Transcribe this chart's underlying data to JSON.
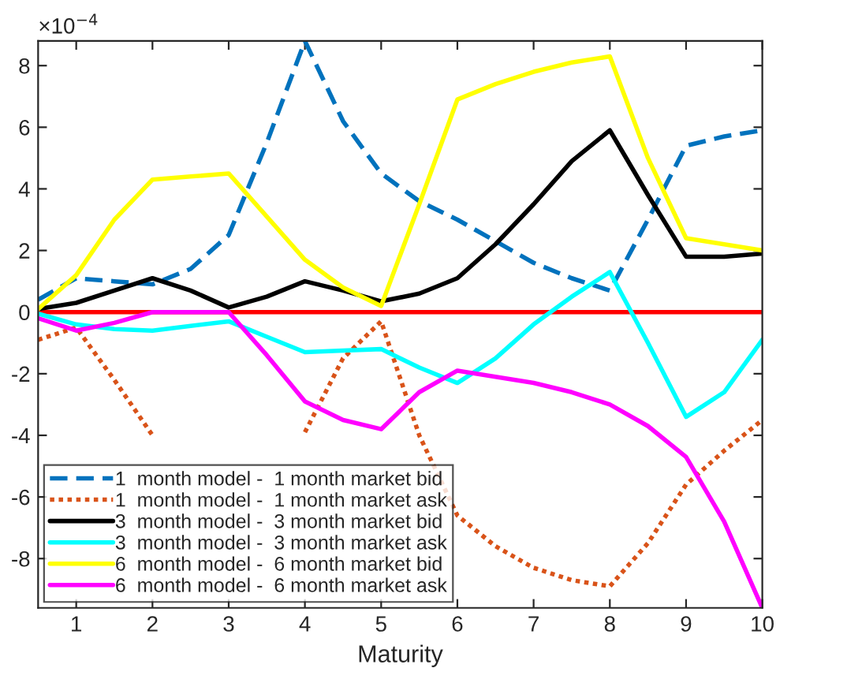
{
  "chart_data": {
    "type": "line",
    "xlabel": "Maturity",
    "x": [
      0.5,
      1,
      1.5,
      2,
      2.5,
      3,
      3.5,
      4,
      4.5,
      5,
      5.5,
      6,
      6.5,
      7,
      7.5,
      8,
      8.5,
      9,
      9.5,
      10
    ],
    "xlim": [
      0.5,
      10
    ],
    "xticks": [
      1,
      2,
      3,
      4,
      5,
      6,
      7,
      8,
      9,
      10
    ],
    "ylim": [
      -9.6,
      8.8
    ],
    "yticks": [
      -8,
      -6,
      -4,
      -2,
      0,
      2,
      4,
      6,
      8
    ],
    "annotations": [
      "×10$^{−4}$"
    ],
    "grid": false,
    "legend": "bottom left",
    "ref_lines": [
      {
        "axis": "y",
        "value": 0,
        "color": "#ff0000",
        "line_style": "solid"
      }
    ],
    "series": [
      {
        "name": "1  month model -  1 month market bid",
        "color": "#0072bd",
        "line_style": "dashed",
        "values": [
          0.4,
          1.1,
          1.0,
          0.9,
          1.4,
          2.5,
          5.5,
          8.8,
          6.2,
          4.5,
          3.6,
          3.0,
          2.3,
          1.6,
          1.1,
          0.7,
          3.0,
          5.4,
          5.7,
          5.9
        ]
      },
      {
        "name": "1  month model -  1 month market ask",
        "color": "#d95319",
        "line_style": "dotted",
        "values": [
          -0.9,
          -0.5,
          -2.2,
          -4.0,
          null,
          null,
          null,
          -3.9,
          -1.5,
          -0.3,
          -4.0,
          -6.6,
          -7.6,
          -8.3,
          -8.7,
          -8.9,
          -7.5,
          -5.6,
          -4.5,
          -3.5
        ]
      },
      {
        "name": "3  month model -  3 month market bid",
        "color": "#000000",
        "line_style": "solid",
        "values": [
          0.1,
          0.3,
          0.7,
          1.1,
          0.7,
          0.15,
          0.5,
          1.0,
          0.7,
          0.35,
          0.6,
          1.1,
          2.2,
          3.5,
          4.9,
          5.9,
          3.8,
          1.8,
          1.8,
          1.9
        ]
      },
      {
        "name": "3  month model -  3 month market ask",
        "color": "#00ffff",
        "line_style": "solid",
        "values": [
          -0.05,
          -0.4,
          -0.55,
          -0.6,
          -0.45,
          -0.3,
          -0.8,
          -1.3,
          -1.25,
          -1.2,
          -1.8,
          -2.3,
          -1.5,
          -0.4,
          0.5,
          1.3,
          -1.0,
          -3.4,
          -2.6,
          -0.9
        ]
      },
      {
        "name": "6  month model -  6 month market bid",
        "color": "#ffff00",
        "line_style": "solid",
        "values": [
          0.1,
          1.2,
          3.0,
          4.3,
          4.4,
          4.5,
          3.1,
          1.7,
          0.8,
          0.2,
          3.5,
          6.9,
          7.4,
          7.8,
          8.1,
          8.3,
          5.0,
          2.4,
          2.2,
          2.0
        ]
      },
      {
        "name": "6  month model -  6 month market ask",
        "color": "#ff00ff",
        "line_style": "solid",
        "values": [
          -0.2,
          -0.6,
          -0.35,
          0.0,
          0.0,
          0.0,
          -1.4,
          -2.9,
          -3.5,
          -3.8,
          -2.6,
          -1.9,
          -2.1,
          -2.3,
          -2.6,
          -3.0,
          -3.7,
          -4.7,
          -6.8,
          -9.6
        ]
      }
    ]
  }
}
